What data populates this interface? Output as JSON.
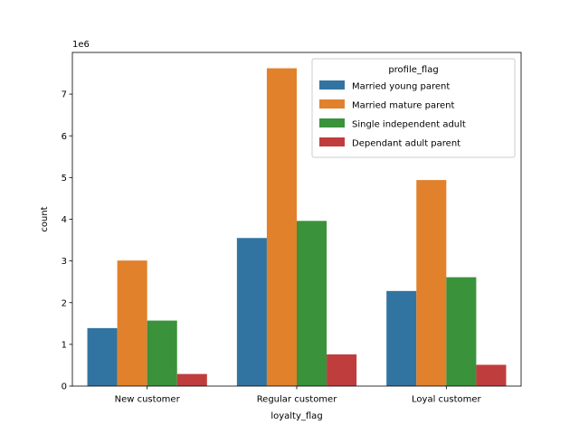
{
  "chart_data": {
    "type": "bar",
    "title": "",
    "xlabel": "loyalty_flag",
    "ylabel": "count",
    "y_multiplier_label": "1e6",
    "y_scale": 1000000,
    "ylim": [
      0,
      7999000
    ],
    "yticks": [
      0,
      1000000,
      2000000,
      3000000,
      4000000,
      5000000,
      6000000,
      7000000
    ],
    "ytick_labels": [
      "0",
      "1",
      "2",
      "3",
      "4",
      "5",
      "6",
      "7"
    ],
    "grid": false,
    "categories": [
      "New customer",
      "Regular customer",
      "Loyal customer"
    ],
    "legend": {
      "title": "profile_flag",
      "placement": "top-right"
    },
    "series": [
      {
        "name": "Married young parent",
        "color": "#3274a1",
        "values": [
          1390000,
          3550000,
          2280000
        ]
      },
      {
        "name": "Married mature parent",
        "color": "#e1812c",
        "values": [
          3010000,
          7620000,
          4940000
        ]
      },
      {
        "name": "Single independent adult",
        "color": "#3a923a",
        "values": [
          1570000,
          3960000,
          2610000
        ]
      },
      {
        "name": "Dependant adult parent",
        "color": "#c03d3e",
        "values": [
          290000,
          760000,
          510000
        ]
      }
    ]
  }
}
